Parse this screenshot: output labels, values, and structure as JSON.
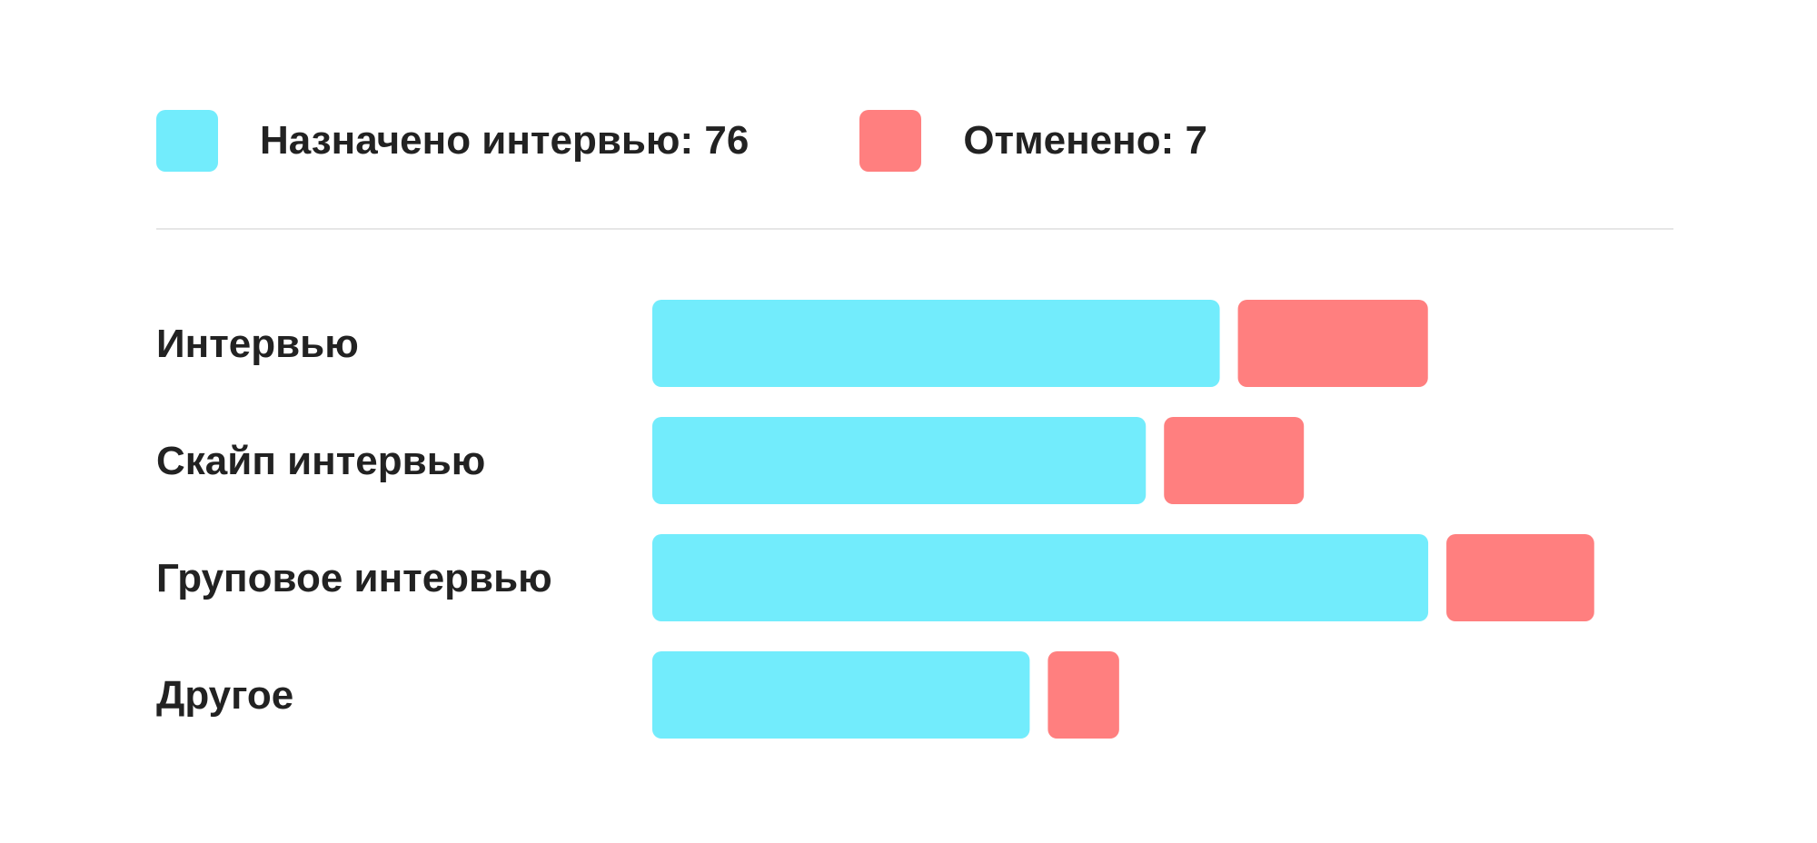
{
  "legend": {
    "scheduled": {
      "label": "Назначено интервью: 76",
      "color": "#72ECFC"
    },
    "cancelled": {
      "label": "Отменено: 7",
      "color": "#FF7F7F"
    }
  },
  "chart_data": {
    "type": "bar",
    "orientation": "horizontal",
    "stacked": true,
    "categories": [
      "Интервью",
      "Скайп интервью",
      "Груповое интервью",
      "Другое"
    ],
    "series": [
      {
        "name": "Назначено интервью: 76",
        "color": "#72ECFC",
        "values": [
          21.5,
          18.7,
          29.4,
          14.3
        ]
      },
      {
        "name": "Отменено: 7",
        "color": "#FF7F7F",
        "values": [
          7.2,
          5.3,
          5.6,
          2.7
        ]
      }
    ],
    "xlim": [
      0,
      40
    ],
    "grid": false,
    "axes_visible": false,
    "legend_position": "top-left"
  }
}
